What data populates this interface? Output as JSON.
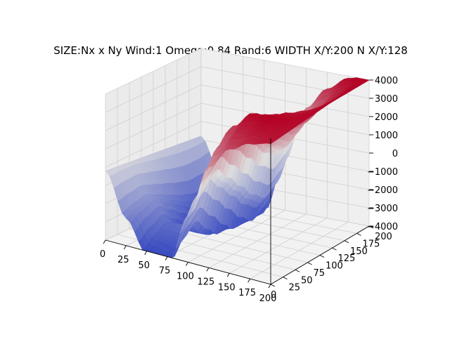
{
  "chart_data": {
    "type": "surface",
    "title": "SIZE:Nx x Ny Wind:1 Omega:0.84 Rand:6 WIDTH X/Y:200 N X/Y:128",
    "colormap": "coolwarm",
    "colors": {
      "low": "#3b4cc0",
      "mid": "#dddddd",
      "high": "#b40426"
    },
    "grid": true,
    "x_ticks": [
      0,
      25,
      50,
      75,
      100,
      125,
      150,
      175,
      200
    ],
    "y_ticks": [
      0,
      25,
      50,
      75,
      100,
      125,
      150,
      175,
      200
    ],
    "z_ticks": [
      -4000,
      -3000,
      -2000,
      -1000,
      0,
      1000,
      2000,
      3000,
      4000
    ],
    "xlim": [
      0,
      200
    ],
    "ylim": [
      0,
      200
    ],
    "zlim": [
      -4000,
      4000
    ],
    "x_profile": {
      "x": [
        0,
        25,
        50,
        75,
        100,
        125,
        150,
        175,
        200
      ],
      "z_at_y0": [
        -200,
        -2500,
        -4200,
        -4500,
        -1500,
        1500,
        2800,
        3400,
        3700
      ],
      "z_at_y200": [
        -800,
        -2900,
        -4300,
        -4100,
        -900,
        2100,
        3300,
        4000,
        4200
      ]
    },
    "y_profile": {
      "y": [
        0,
        25,
        50,
        75,
        100,
        125,
        150,
        175,
        200
      ],
      "z_offset": [
        0,
        900,
        1500,
        600,
        -300,
        -1200,
        -1800,
        -1400,
        -300
      ]
    }
  }
}
